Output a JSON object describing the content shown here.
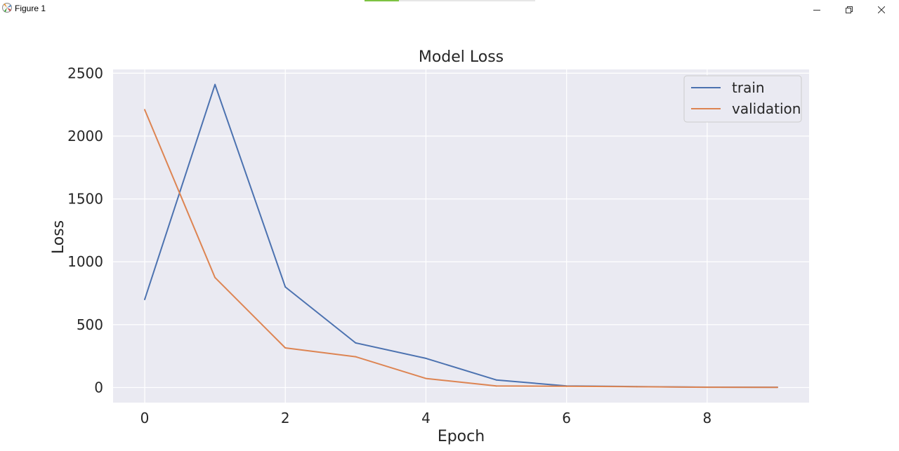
{
  "window": {
    "title": "Figure 1",
    "icons": {
      "app": "matplotlib-figure-icon",
      "minimize": "minimize-icon",
      "maximize": "restore-icon",
      "close": "close-icon"
    },
    "progress": 0.2
  },
  "chart_data": {
    "type": "line",
    "title": "Model Loss",
    "xlabel": "Epoch",
    "ylabel": "Loss",
    "x": [
      0,
      1,
      2,
      3,
      4,
      5,
      6,
      7,
      8,
      9
    ],
    "series": [
      {
        "name": "train",
        "color": "#4c72b0",
        "values": [
          700,
          2410,
          800,
          355,
          232,
          60,
          12,
          7,
          3,
          2
        ]
      },
      {
        "name": "validation",
        "color": "#dd8452",
        "values": [
          2210,
          875,
          315,
          245,
          72,
          12,
          10,
          6,
          2,
          1
        ]
      }
    ],
    "xlim": [
      -0.45,
      9.45
    ],
    "ylim": [
      -120,
      2530
    ],
    "xticks": [
      0,
      2,
      4,
      6,
      8
    ],
    "yticks": [
      0,
      500,
      1000,
      1500,
      2000,
      2500
    ],
    "grid": true,
    "legend": "top-right",
    "style": {
      "background": "#eaeaf2",
      "grid_color": "#ffffff",
      "text_color": "#262626"
    }
  }
}
